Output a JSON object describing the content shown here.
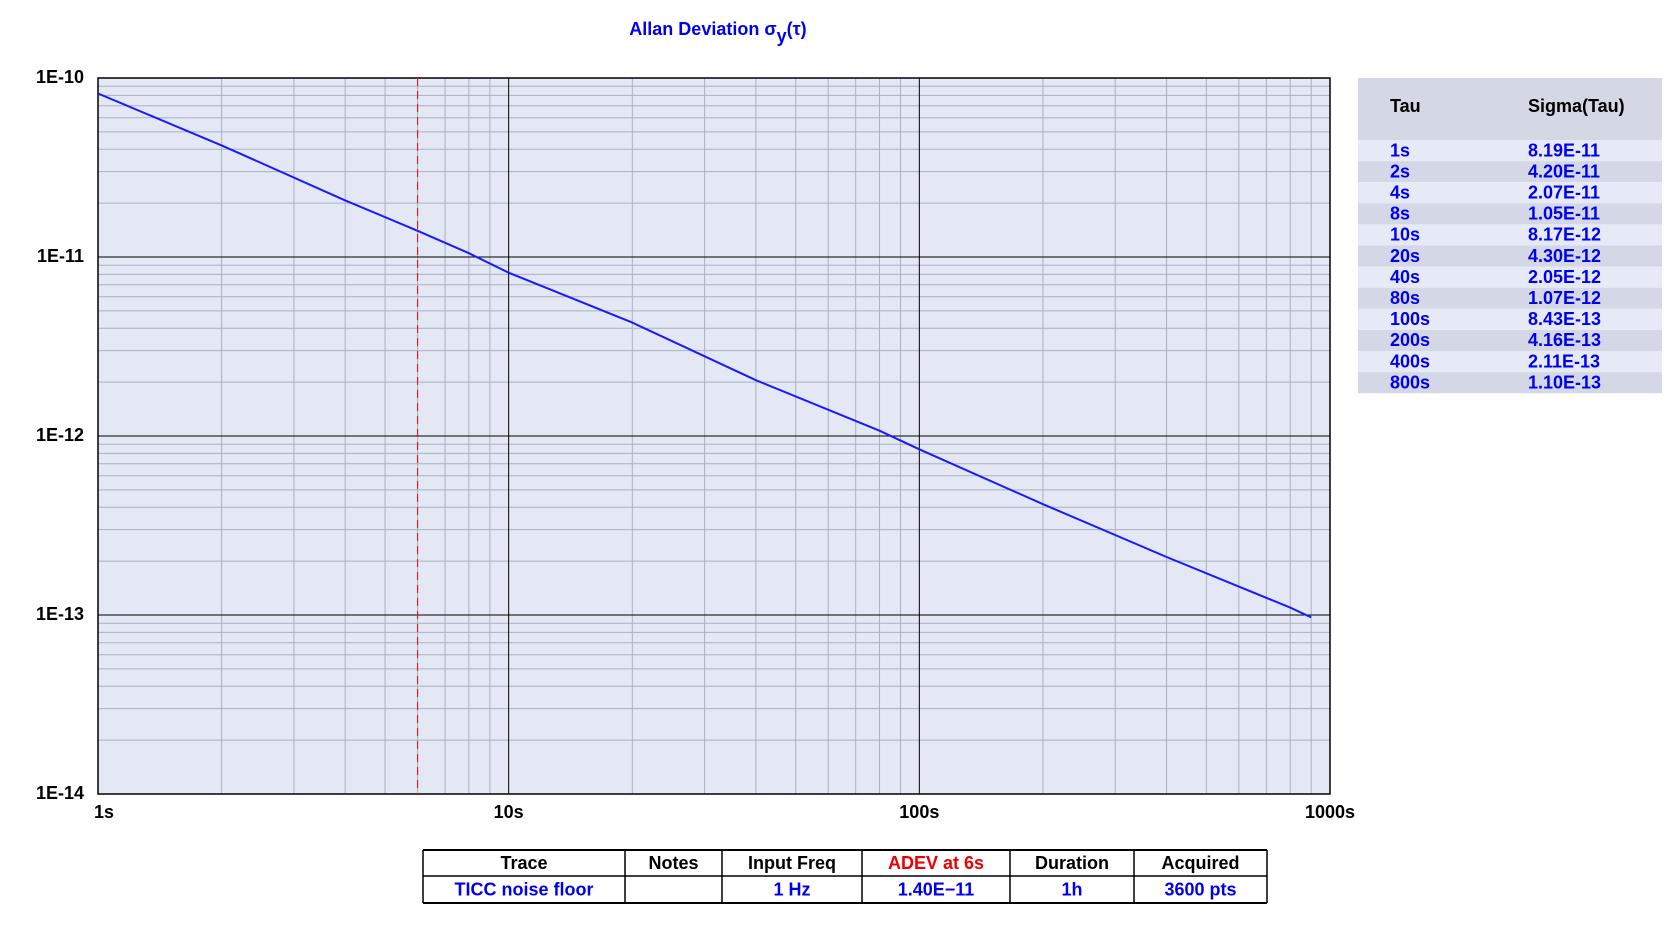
{
  "chart_data": {
    "type": "line",
    "title": "Allan Deviation σ",
    "title_subscript": "y",
    "title_suffix": "(τ)",
    "title_color": "#0000ee",
    "xscale": "log",
    "yscale": "log",
    "grid": true,
    "minor_grid": true,
    "background": "#e4e8f4",
    "xlim": [
      1,
      1000
    ],
    "xticks": [
      {
        "value": 1,
        "label": "1s"
      },
      {
        "value": 10,
        "label": "10s"
      },
      {
        "value": 100,
        "label": "100s"
      },
      {
        "value": 1000,
        "label": "1000s"
      }
    ],
    "ylim": [
      1e-14,
      1e-10
    ],
    "yticks": [
      {
        "value": 1e-14,
        "label": "1E-14"
      },
      {
        "value": 1e-13,
        "label": "1E-13"
      },
      {
        "value": 1e-12,
        "label": "1E-12"
      },
      {
        "value": 1e-11,
        "label": "1E-11"
      },
      {
        "value": 1e-10,
        "label": "1E-10"
      }
    ],
    "series": [
      {
        "color": "#1a1aff",
        "x": [
          1,
          2,
          4,
          6,
          8,
          10,
          20,
          40,
          80,
          100,
          200,
          400,
          800,
          900
        ],
        "values": [
          8.19e-11,
          4.2e-11,
          2.07e-11,
          1.4e-11,
          1.05e-11,
          8.17e-12,
          4.3e-12,
          2.05e-12,
          1.07e-12,
          8.43e-13,
          4.16e-13,
          2.11e-13,
          1.1e-13,
          9.7e-14
        ]
      }
    ],
    "vline": {
      "x": 6,
      "color": "#e02020"
    }
  },
  "sigma_table": {
    "columns": [
      "Tau",
      "Sigma(Tau)"
    ],
    "rows": [
      [
        "1s",
        "8.19E-11"
      ],
      [
        "2s",
        "4.20E-11"
      ],
      [
        "4s",
        "2.07E-11"
      ],
      [
        "8s",
        "1.05E-11"
      ],
      [
        "10s",
        "8.17E-12"
      ],
      [
        "20s",
        "4.30E-12"
      ],
      [
        "40s",
        "2.05E-12"
      ],
      [
        "80s",
        "1.07E-12"
      ],
      [
        "100s",
        "8.43E-13"
      ],
      [
        "200s",
        "4.16E-13"
      ],
      [
        "400s",
        "2.11E-13"
      ],
      [
        "800s",
        "1.10E-13"
      ]
    ]
  },
  "info_table": {
    "columns": [
      "Trace",
      "Notes",
      "Input Freq",
      "ADEV at 6s",
      "Duration",
      "Acquired"
    ],
    "highlight_column": 3,
    "highlight_color": "#ee0000",
    "rows": [
      [
        "TICC noise floor",
        "",
        "1 Hz",
        "1.40E−11",
        "1h",
        "3600 pts"
      ]
    ]
  }
}
